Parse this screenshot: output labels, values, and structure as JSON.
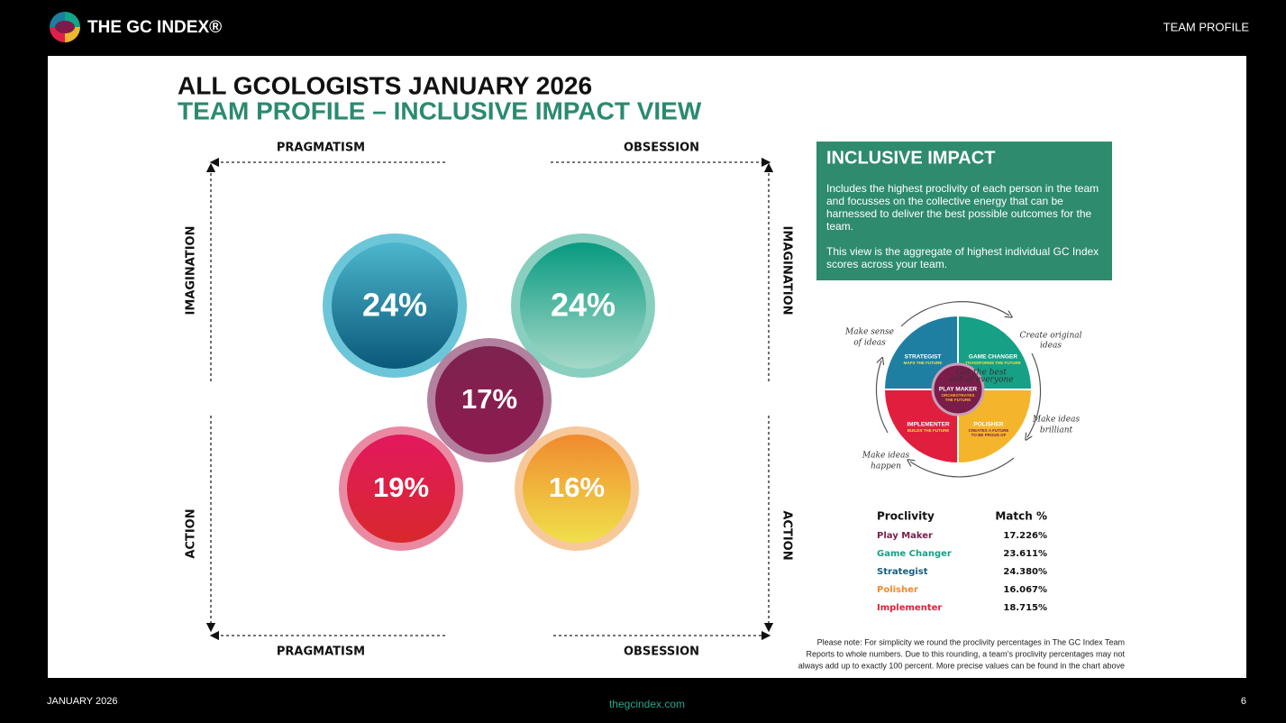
{
  "header": {
    "logo_text": "THE GC INDEX®",
    "section": "TEAM PROFILE"
  },
  "title": "ALL GCOLOGISTS JANUARY 2026",
  "subtitle": "TEAM PROFILE – INCLUSIVE IMPACT VIEW",
  "axes": {
    "top_left": "PRAGMATISM",
    "top_right": "OBSESSION",
    "left_top": "IMAGINATION",
    "left_bottom": "ACTION",
    "right_top": "IMAGINATION",
    "right_bottom": "ACTION",
    "bottom_left": "PRAGMATISM",
    "bottom_right": "OBSESSION"
  },
  "bubbles": {
    "strategist": "24%",
    "game_changer": "24%",
    "play_maker": "17%",
    "implementer": "19%",
    "polisher": "16%"
  },
  "info_box": {
    "title": "INCLUSIVE IMPACT",
    "paragraphs": [
      "Includes the highest proclivity of each person in the team and focusses on the collective energy that can be harnessed to deliver the best possible outcomes for the team.",
      "This view is the aggregate of highest individual GC Index scores across your team."
    ]
  },
  "wheel": {
    "quadrants": [
      {
        "title": "STRATEGIST",
        "subtitle": [
          "MAPS THE FUTURE"
        ]
      },
      {
        "title": "GAME CHANGER",
        "subtitle": [
          "TRANSFORMS THE FUTURE"
        ]
      },
      {
        "title": "IMPLEMENTER",
        "subtitle": [
          "BUILDS THE FUTURE"
        ]
      },
      {
        "title": "POLISHER",
        "subtitle": [
          "CREATES A FUTURE",
          "TO BE PROUD OF"
        ]
      }
    ],
    "center": {
      "title": "PLAY MAKER",
      "subtitle": [
        "ORCHESTRATES",
        "THE FUTURE"
      ]
    },
    "annotations": [
      [
        "Make sense",
        "of ideas"
      ],
      [
        "Create original",
        "ideas"
      ],
      [
        "Make ideas",
        "brilliant"
      ],
      [
        "Make ideas",
        "happen"
      ],
      [
        "Get the best",
        "out of everyone"
      ]
    ]
  },
  "table": {
    "headers": [
      "Proclivity",
      "Match %"
    ],
    "rows": [
      [
        "Play Maker",
        "17.226%"
      ],
      [
        "Game Changer",
        "23.611%"
      ],
      [
        "Strategist",
        "24.380%"
      ],
      [
        "Polisher",
        "16.067%"
      ],
      [
        "Implementer",
        "18.715%"
      ]
    ]
  },
  "note": [
    "Please note: For simplicity we round the proclivity percentages in The GC Index Team",
    "Reports to whole numbers. Due to this rounding, a team’s proclivity percentages may not",
    "always add up to exactly 100 percent. More precise values can be found in the chart above"
  ],
  "footer": {
    "date": "JANUARY 2026",
    "website": "thegcindex.com",
    "page": "6"
  }
}
